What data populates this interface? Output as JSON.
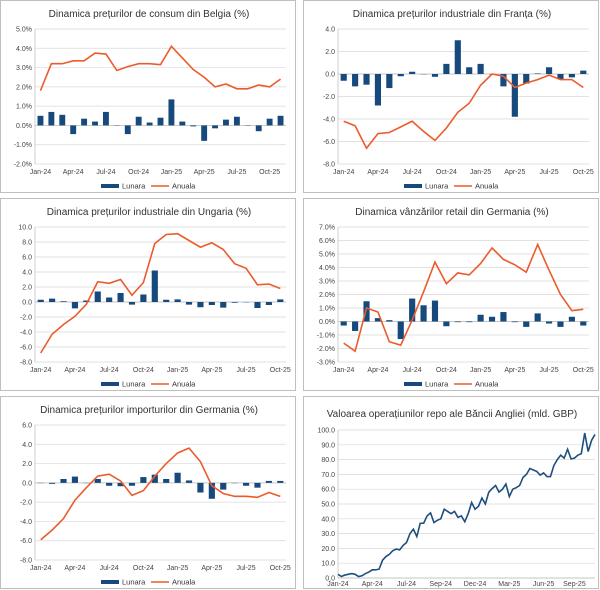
{
  "colors": {
    "monthly": "#174a7c",
    "annual": "#ec5b2c",
    "repo": "#1d4f7e",
    "grid": "#d9d9d9"
  },
  "chart_data": [
    {
      "type": "bar+line",
      "title": "Dinamica prețurilor de consum din Belgia (%)",
      "ylim": [
        -2,
        5
      ],
      "ystep": 1,
      "y_ticks": [
        "-2.0%",
        "-1.0%",
        "0.0%",
        "1.0%",
        "2.0%",
        "3.0%",
        "4.0%",
        "5.0%"
      ],
      "x_tick_labels": [
        "Jan-24",
        "Apr-24",
        "Jul-24",
        "Oct-24",
        "Jan-25",
        "Apr-25",
        "Jul-25",
        "Oct-25"
      ],
      "legend": [
        "Lunara",
        "Anuala"
      ],
      "legend_position": "bottom",
      "series": [
        {
          "name": "Lunara",
          "kind": "bar",
          "values": [
            0.5,
            0.7,
            0.55,
            -0.45,
            0.35,
            0.2,
            0.7,
            0,
            -0.45,
            0.45,
            0.15,
            0.4,
            1.35,
            0.2,
            -0.05,
            -0.8,
            -0.15,
            0.3,
            0.45,
            0,
            -0.3,
            0.35,
            0.5
          ]
        },
        {
          "name": "Anuala",
          "kind": "line",
          "values": [
            1.8,
            3.2,
            3.2,
            3.35,
            3.35,
            3.75,
            3.7,
            2.85,
            3.05,
            3.2,
            3.2,
            3.15,
            4.1,
            3.5,
            2.9,
            2.5,
            2.0,
            2.15,
            1.9,
            1.9,
            2.1,
            2.0,
            2.4
          ]
        }
      ]
    },
    {
      "type": "bar+line",
      "title": "Dinamica prețurilor industriale din Franța (%)",
      "ylim": [
        -8,
        4
      ],
      "ystep": 2,
      "y_ticks": [
        "-8.0",
        "-6.0",
        "-4.0",
        "-2.0",
        "0.0",
        "2.0",
        "4.0"
      ],
      "x_tick_labels": [
        "Jan-24",
        "Apr-24",
        "Jul-24",
        "Oct-24",
        "Jan-25",
        "Apr-25",
        "Jul-25",
        "Oct-25"
      ],
      "legend": [
        "Lunara",
        "Anuala"
      ],
      "legend_position": "bottom",
      "series": [
        {
          "name": "Lunara",
          "kind": "bar",
          "values": [
            -0.6,
            -1.1,
            -0.95,
            -2.8,
            -1.25,
            -0.2,
            0.2,
            0,
            -0.25,
            0.9,
            3.0,
            0.6,
            0.9,
            0,
            -1.1,
            -3.8,
            -0.85,
            0.05,
            0.6,
            -0.45,
            -0.3,
            0.3
          ]
        },
        {
          "name": "Anuala",
          "kind": "line",
          "values": [
            -4.2,
            -4.6,
            -6.6,
            -5.3,
            -5.2,
            -4.7,
            -4.2,
            -5.1,
            -5.9,
            -4.8,
            -3.4,
            -2.6,
            -1.0,
            0.0,
            -0.2,
            -1.2,
            -0.8,
            -0.5,
            -0.1,
            -0.5,
            -0.5,
            -1.2
          ]
        }
      ]
    },
    {
      "type": "bar+line",
      "title": "Dinamica prețurilor industriale din Ungaria (%)",
      "ylim": [
        -8,
        10
      ],
      "ystep": 2,
      "y_ticks": [
        "-8.0",
        "-6.0",
        "-4.0",
        "-2.0",
        "0.0",
        "2.0",
        "4.0",
        "6.0",
        "8.0",
        "10.0"
      ],
      "x_tick_labels": [
        "Jan-24",
        "Apr-24",
        "Jul-24",
        "Oct-24",
        "Jan-25",
        "Apr-25",
        "Jul-25",
        "Oct-25"
      ],
      "legend": [
        "Lunara",
        "Anuala"
      ],
      "legend_position": "bottom",
      "series": [
        {
          "name": "Lunara",
          "kind": "bar",
          "values": [
            0.3,
            0.45,
            0.1,
            -0.85,
            0.2,
            1.4,
            0.6,
            1.2,
            -0.35,
            1.0,
            4.2,
            0.3,
            0.35,
            -0.35,
            -0.7,
            -0.4,
            -0.75,
            -0.1,
            0,
            -0.8,
            -0.4,
            0.35
          ]
        },
        {
          "name": "Anuala",
          "kind": "line",
          "values": [
            -6.8,
            -4.3,
            -3.0,
            -1.9,
            -0.3,
            2.7,
            2.5,
            3.0,
            0.9,
            2.6,
            7.8,
            9.0,
            9.1,
            8.2,
            7.3,
            7.9,
            7.0,
            5.1,
            4.5,
            2.3,
            2.4,
            1.8
          ]
        }
      ]
    },
    {
      "type": "bar+line",
      "title": "Dinamica vânzărilor retail din Germania (%)",
      "ylim": [
        -3,
        7
      ],
      "ystep": 1,
      "y_ticks": [
        "-3.0%",
        "-2.0%",
        "-1.0%",
        "0.0%",
        "1.0%",
        "2.0%",
        "3.0%",
        "4.0%",
        "5.0%",
        "6.0%",
        "7.0%"
      ],
      "x_tick_labels": [
        "Jan-24",
        "Apr-24",
        "Jul-24",
        "Oct-24",
        "Jan-25",
        "Apr-25",
        "Jul-25",
        "Oct-25"
      ],
      "legend": [
        "Lunara",
        "Anuala"
      ],
      "legend_position": "bottom",
      "series": [
        {
          "name": "Lunara",
          "kind": "bar",
          "values": [
            -0.3,
            -0.7,
            1.5,
            0.25,
            0.1,
            -1.3,
            1.7,
            1.2,
            1.55,
            -0.35,
            -0.05,
            -0.05,
            0.5,
            0.35,
            0.7,
            -0.05,
            -0.4,
            0.6,
            -0.15,
            -0.4,
            0.35,
            -0.3
          ]
        },
        {
          "name": "Anuala",
          "kind": "line",
          "values": [
            -1.6,
            -2.2,
            1.0,
            0.7,
            -1.5,
            -1.75,
            0.1,
            2.2,
            4.4,
            2.8,
            3.6,
            3.45,
            4.3,
            5.45,
            4.6,
            4.2,
            3.65,
            5.7,
            3.8,
            2.0,
            0.8,
            0.9
          ]
        }
      ]
    },
    {
      "type": "bar+line",
      "title": "Dinamica prețurilor importurilor din Germania (%)",
      "ylim": [
        -8,
        6
      ],
      "ystep": 2,
      "y_ticks": [
        "-8.0",
        "-6.0",
        "-4.0",
        "-2.0",
        "0.0",
        "2.0",
        "4.0",
        "6.0"
      ],
      "x_tick_labels": [
        "Jan-24",
        "Apr-24",
        "Jul-24",
        "Oct-24",
        "Jan-25",
        "Apr-25",
        "Jul-25",
        "Oct-25"
      ],
      "legend": [
        "Lunara",
        "Anuala"
      ],
      "legend_position": "bottom",
      "series": [
        {
          "name": "Lunara",
          "kind": "bar",
          "values": [
            0,
            -0.1,
            0.4,
            0.65,
            0,
            0.4,
            -0.3,
            -0.35,
            -0.3,
            0.6,
            0.85,
            0.4,
            1.05,
            0.25,
            -1.0,
            -1.65,
            -0.7,
            0,
            -0.3,
            -0.5,
            0.2,
            0.2
          ]
        },
        {
          "name": "Anuala",
          "kind": "line",
          "values": [
            -5.9,
            -4.9,
            -3.7,
            -1.8,
            -0.5,
            0.7,
            0.9,
            0.2,
            -1.3,
            -0.8,
            0.7,
            2.0,
            3.1,
            3.6,
            2.2,
            -0.3,
            -1.1,
            -1.4,
            -1.4,
            -1.5,
            -1.0,
            -1.4
          ]
        }
      ]
    },
    {
      "type": "line",
      "title": "Valoarea operațiunilor repo ale Băncii Angliei (mld. GBP)",
      "ylim": [
        0,
        100
      ],
      "ystep": 10,
      "y_ticks": [
        "0.0",
        "10.0",
        "20.0",
        "30.0",
        "40.0",
        "50.0",
        "60.0",
        "70.0",
        "80.0",
        "90.0",
        "100.0"
      ],
      "x_tick_labels": [
        "Jan-24",
        "Apr-24",
        "Jul-24",
        "Sep-24",
        "Dec-24",
        "Mar-25",
        "Jun-25",
        "Sep-25"
      ],
      "x_tick_index": [
        0,
        10,
        20,
        30,
        40,
        50,
        60,
        69
      ],
      "series": [
        {
          "name": "Repo",
          "kind": "line",
          "values": [
            2.5,
            1,
            2,
            2.5,
            3,
            2.5,
            1,
            1.5,
            3,
            4,
            5.5,
            5.5,
            6,
            12,
            14.5,
            16,
            18.5,
            19.5,
            19,
            22,
            24,
            30,
            33,
            28,
            37,
            37,
            42,
            44,
            37.5,
            39,
            40,
            46.5,
            45,
            43.5,
            45,
            41,
            42,
            38,
            43.5,
            51,
            46.5,
            48.5,
            54,
            50,
            58,
            60.5,
            62.5,
            58,
            60,
            63.5,
            55,
            60,
            61,
            62.5,
            68,
            70,
            74,
            73,
            72,
            69.5,
            71,
            68.5,
            68.5,
            76,
            80,
            83,
            81,
            87,
            80.5,
            81,
            83,
            84,
            98,
            85.5,
            93,
            97
          ]
        }
      ]
    }
  ]
}
